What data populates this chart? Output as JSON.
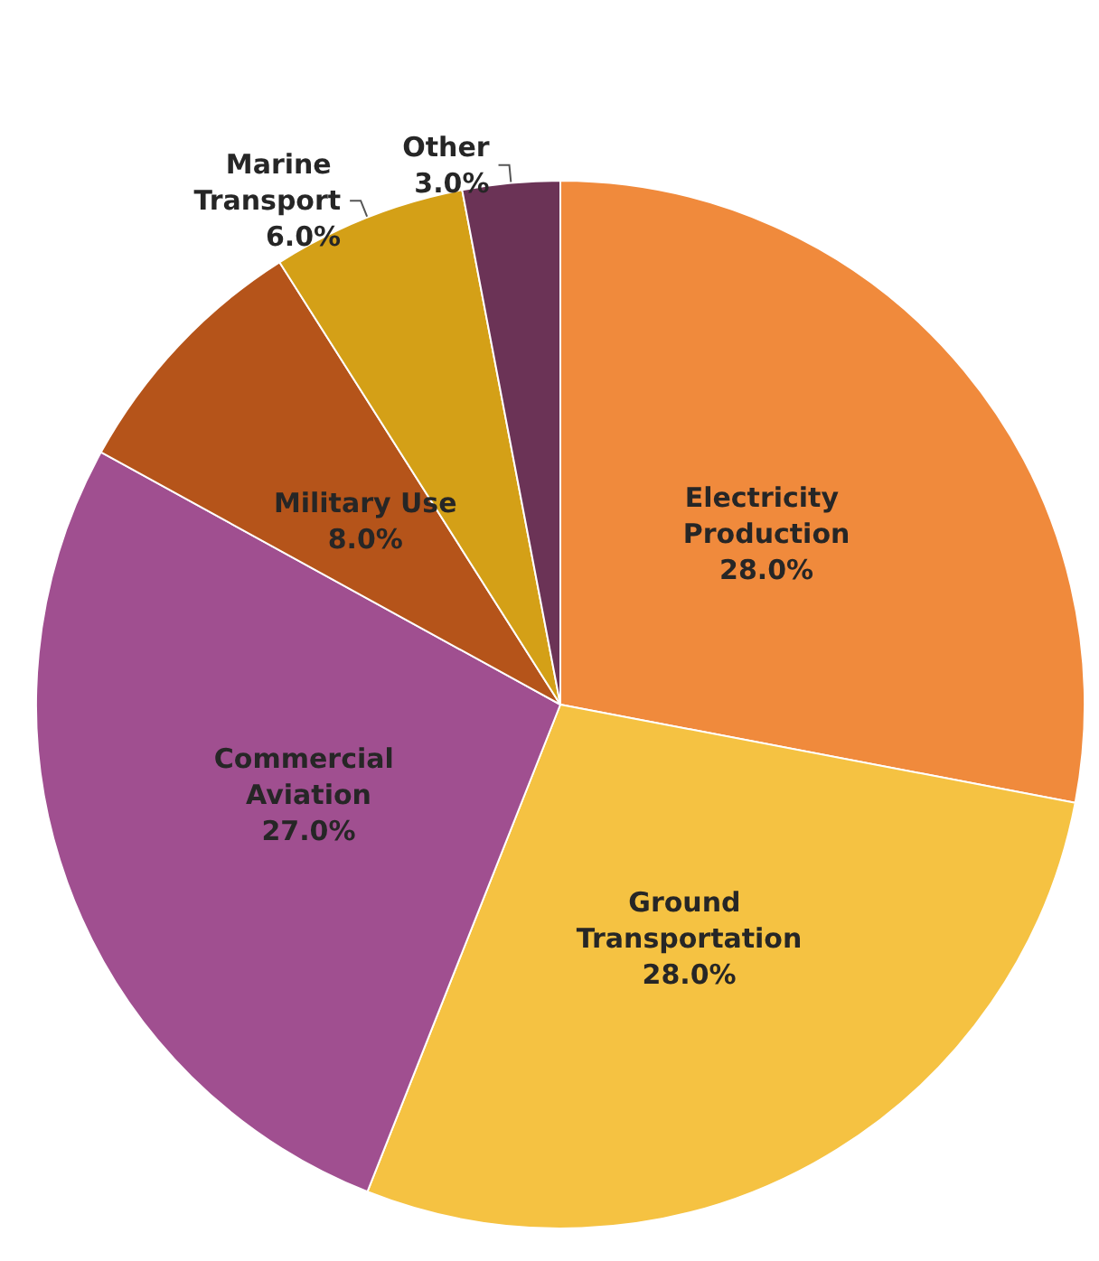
{
  "chart_data": {
    "type": "pie",
    "categories": [
      "Electricity Production",
      "Ground Transportation",
      "Commercial Aviation",
      "Military Use",
      "Marine Transport",
      "Other"
    ],
    "values": [
      28.0,
      28.0,
      27.0,
      8.0,
      6.0,
      3.0
    ],
    "colors": [
      "#f08a3c",
      "#f5c242",
      "#a04f90",
      "#b5541a",
      "#d4a017",
      "#6b3356"
    ],
    "value_labels": [
      "28.0%",
      "28.0%",
      "27.0%",
      "8.0%",
      "6.0%",
      "3.0%"
    ],
    "legend": false
  }
}
